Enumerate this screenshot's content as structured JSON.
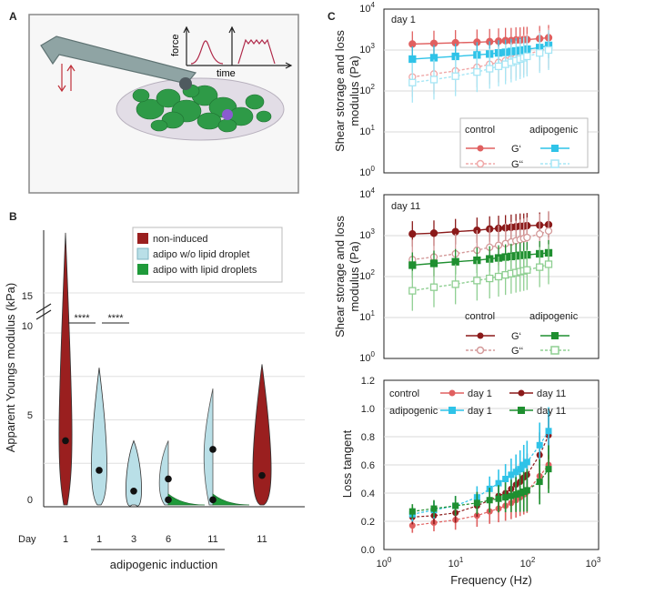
{
  "panels": {
    "a": "A",
    "b": "B",
    "c": "C"
  },
  "schematic": {
    "force_label": "force",
    "time_label": "time"
  },
  "chart_data": [
    {
      "id": "violin",
      "type": "violin",
      "ylabel": "Apparent Youngs modulus (kPa)",
      "xlabel_prefix": "Day",
      "ylim": [
        0,
        18.5
      ],
      "axis_break": [
        10.5,
        15
      ],
      "yticks": [
        "0",
        "5",
        "10",
        "15"
      ],
      "categories": [
        "1",
        "1",
        "3",
        "6",
        "11",
        "11"
      ],
      "groups": [
        {
          "day": "1",
          "kind": "non-induced",
          "color": "#9a1f1f",
          "medians": [
            3.8
          ],
          "max": 18.4
        },
        {
          "day": "1",
          "kind": "adipo w/o lipid droplet",
          "color": "#b9dfe7",
          "medians": [
            2.1
          ],
          "max": 8.0
        },
        {
          "day": "3",
          "kind": "adipo w/o lipid droplet",
          "color": "#b9dfe7",
          "medians": [
            0.9
          ],
          "max": 3.8
        },
        {
          "day": "6",
          "kind": "split",
          "color": "#b9dfe7",
          "color2": "#1f9a3a",
          "medians": [
            1.6,
            0.4
          ],
          "max": 3.8
        },
        {
          "day": "11",
          "kind": "split",
          "color": "#b9dfe7",
          "color2": "#1f9a3a",
          "medians": [
            3.3,
            0.4
          ],
          "max": 6.8
        },
        {
          "day": "11",
          "kind": "non-induced",
          "color": "#9a1f1f",
          "medians": [
            1.8
          ],
          "max": 8.2
        }
      ],
      "significance": [
        "****",
        "****"
      ],
      "group_label": "adipogenic induction",
      "legend": [
        "non-induced",
        "adipo w/o lipid droplet",
        "adipo with lipid droplets"
      ]
    },
    {
      "id": "day1",
      "type": "line",
      "title": "day 1",
      "ylabel": [
        "Shear storage and loss",
        "modulus (Pa)"
      ],
      "yscale": "log",
      "ylim": [
        1,
        10000
      ],
      "yticks": [
        "10",
        "10",
        "10",
        "10",
        "10"
      ],
      "ytick_exps": [
        "0",
        "1",
        "2",
        "3",
        "4"
      ],
      "x": [
        2.5,
        5,
        10,
        20,
        30,
        40,
        50,
        60,
        70,
        80,
        90,
        100,
        150,
        200
      ],
      "series": [
        {
          "name": "control G'",
          "color": "#e06060",
          "filled": true,
          "values": [
            1400,
            1450,
            1500,
            1550,
            1600,
            1650,
            1700,
            1700,
            1750,
            1750,
            1800,
            1800,
            1900,
            2000
          ]
        },
        {
          "name": "control G''",
          "color": "#f0a8a8",
          "filled": false,
          "values": [
            220,
            260,
            310,
            380,
            450,
            500,
            550,
            600,
            650,
            700,
            760,
            800,
            950,
            1100
          ]
        },
        {
          "name": "adipogenic G'",
          "color": "#2fc3e8",
          "filled": true,
          "values": [
            600,
            650,
            700,
            760,
            800,
            850,
            880,
            920,
            950,
            980,
            1000,
            1050,
            1150,
            1300
          ]
        },
        {
          "name": "adipogenic G''",
          "color": "#a6e6f5",
          "filled": false,
          "values": [
            160,
            190,
            230,
            290,
            350,
            400,
            450,
            500,
            550,
            600,
            650,
            700,
            850,
            1000
          ]
        }
      ],
      "legend": {
        "control": "control",
        "adipogenic": "adipogenic",
        "gp": "G‘",
        "gpp": "G‘‘"
      }
    },
    {
      "id": "day11",
      "type": "line",
      "title": "day 11",
      "ylabel": [
        "Shear storage and loss",
        "modulus (Pa)"
      ],
      "yscale": "log",
      "ylim": [
        1,
        10000
      ],
      "yticks": [
        "10",
        "10",
        "10",
        "10",
        "10"
      ],
      "ytick_exps": [
        "0",
        "1",
        "2",
        "3",
        "4"
      ],
      "x": [
        2.5,
        5,
        10,
        20,
        30,
        40,
        50,
        60,
        70,
        80,
        90,
        100,
        150,
        200
      ],
      "series": [
        {
          "name": "control G'",
          "color": "#8b1a1a",
          "filled": true,
          "values": [
            1100,
            1150,
            1250,
            1350,
            1450,
            1500,
            1550,
            1600,
            1650,
            1700,
            1700,
            1750,
            1800,
            1850
          ]
        },
        {
          "name": "control G''",
          "color": "#d49a9a",
          "filled": false,
          "values": [
            260,
            300,
            360,
            440,
            520,
            580,
            640,
            700,
            750,
            800,
            850,
            900,
            1100,
            1300
          ]
        },
        {
          "name": "adipogenic G'",
          "color": "#1f8f30",
          "filled": true,
          "values": [
            190,
            210,
            230,
            250,
            270,
            285,
            300,
            310,
            320,
            330,
            335,
            340,
            360,
            380
          ]
        },
        {
          "name": "adipogenic G''",
          "color": "#8fcf92",
          "filled": false,
          "values": [
            45,
            55,
            65,
            80,
            90,
            100,
            110,
            118,
            125,
            132,
            138,
            145,
            170,
            200
          ]
        }
      ],
      "legend": {
        "control": "control",
        "adipogenic": "adipogenic",
        "gp": "G‘",
        "gpp": "G‘‘"
      }
    },
    {
      "id": "tangent",
      "type": "line",
      "ylabel": "Loss tangent",
      "xlabel": "Frequency (Hz)",
      "xscale": "log",
      "xlim": [
        1,
        1000
      ],
      "ylim": [
        0,
        1.2
      ],
      "xticks": [
        "10",
        "10",
        "10",
        "10"
      ],
      "xtick_exps": [
        "0",
        "1",
        "2",
        "3"
      ],
      "yticks": [
        "0.0",
        "0.2",
        "0.4",
        "0.6",
        "0.8",
        "1.0",
        "1.2"
      ],
      "x": [
        2.5,
        5,
        10,
        20,
        30,
        40,
        50,
        60,
        70,
        80,
        90,
        100,
        150,
        200
      ],
      "series": [
        {
          "name": "control day 1",
          "color": "#e06060",
          "values": [
            0.17,
            0.19,
            0.21,
            0.24,
            0.27,
            0.29,
            0.31,
            0.33,
            0.35,
            0.37,
            0.39,
            0.41,
            0.52,
            0.6
          ]
        },
        {
          "name": "control day 11",
          "color": "#8b1a1a",
          "values": [
            0.23,
            0.24,
            0.26,
            0.31,
            0.35,
            0.38,
            0.4,
            0.43,
            0.46,
            0.48,
            0.51,
            0.53,
            0.67,
            0.81
          ]
        },
        {
          "name": "adipogenic day 1",
          "color": "#2fc3e8",
          "values": [
            0.25,
            0.28,
            0.31,
            0.37,
            0.43,
            0.47,
            0.5,
            0.53,
            0.55,
            0.57,
            0.6,
            0.62,
            0.74,
            0.84
          ]
        },
        {
          "name": "adipogenic day 11",
          "color": "#1f8f30",
          "values": [
            0.27,
            0.29,
            0.31,
            0.33,
            0.35,
            0.36,
            0.37,
            0.38,
            0.39,
            0.4,
            0.41,
            0.42,
            0.48,
            0.57
          ]
        }
      ],
      "legend": {
        "control": "control",
        "adipogenic": "adipogenic",
        "day1": "day 1",
        "day11": "day 11"
      }
    }
  ]
}
